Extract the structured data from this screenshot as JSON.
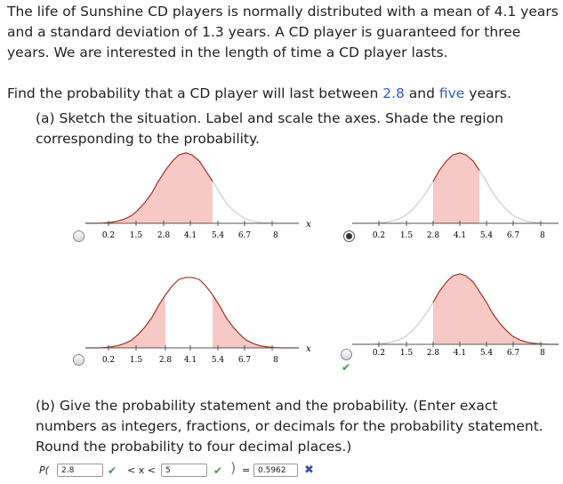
{
  "problem": {
    "intro": "The life of Sunshine CD players is normally distributed with a mean of 4.1 years and a standard deviation of 1.3 years. A CD player is guaranteed for three years. We are interested in the length of time a CD player lasts.",
    "question_pre": "Find the probability that a CD player will last between ",
    "question_low": "2.8",
    "question_mid": " and ",
    "question_high": "five",
    "question_post": " years."
  },
  "part_a": {
    "text": "(a) Sketch the situation. Label and scale the axes. Shade the region corresponding to the probability.",
    "axis_label": "x",
    "ticks": [
      "0.2",
      "1.5",
      "2.8",
      "4.1",
      "5.4",
      "6.7",
      "8"
    ],
    "options": [
      {
        "id": "opt1",
        "shaded_from": 0.2,
        "shaded_to": 4.1,
        "selected": false,
        "marked_correct": false
      },
      {
        "id": "opt2",
        "shaded_from": 2.8,
        "shaded_to": 5.4,
        "selected": true,
        "marked_correct": false
      },
      {
        "id": "opt3",
        "shaded_from_list": [
          [
            0.2,
            2.8
          ],
          [
            5.4,
            8
          ]
        ],
        "selected": false,
        "marked_correct": false
      },
      {
        "id": "opt4",
        "shaded_from": 2.8,
        "shaded_to": 8,
        "selected": false,
        "marked_correct": true
      }
    ]
  },
  "part_b": {
    "text": "(b) Give the probability statement and the probability. (Enter exact numbers as integers, fractions, or decimals for the probability statement. Round the probability to four decimal places.)",
    "p_label": "P(",
    "lower_value": "2.8",
    "middle_text": "< x <",
    "upper_value": "5",
    "close_paren": ")",
    "equals": "=",
    "probability_value": "0.5962",
    "lower_status": "correct",
    "upper_status": "correct",
    "probability_status": "incorrect"
  },
  "colors": {
    "shade": "#f6c9c6",
    "curve_dark": "#a52f25",
    "curve_light": "#cccccc",
    "accent_blue": "#2f5fb3"
  }
}
